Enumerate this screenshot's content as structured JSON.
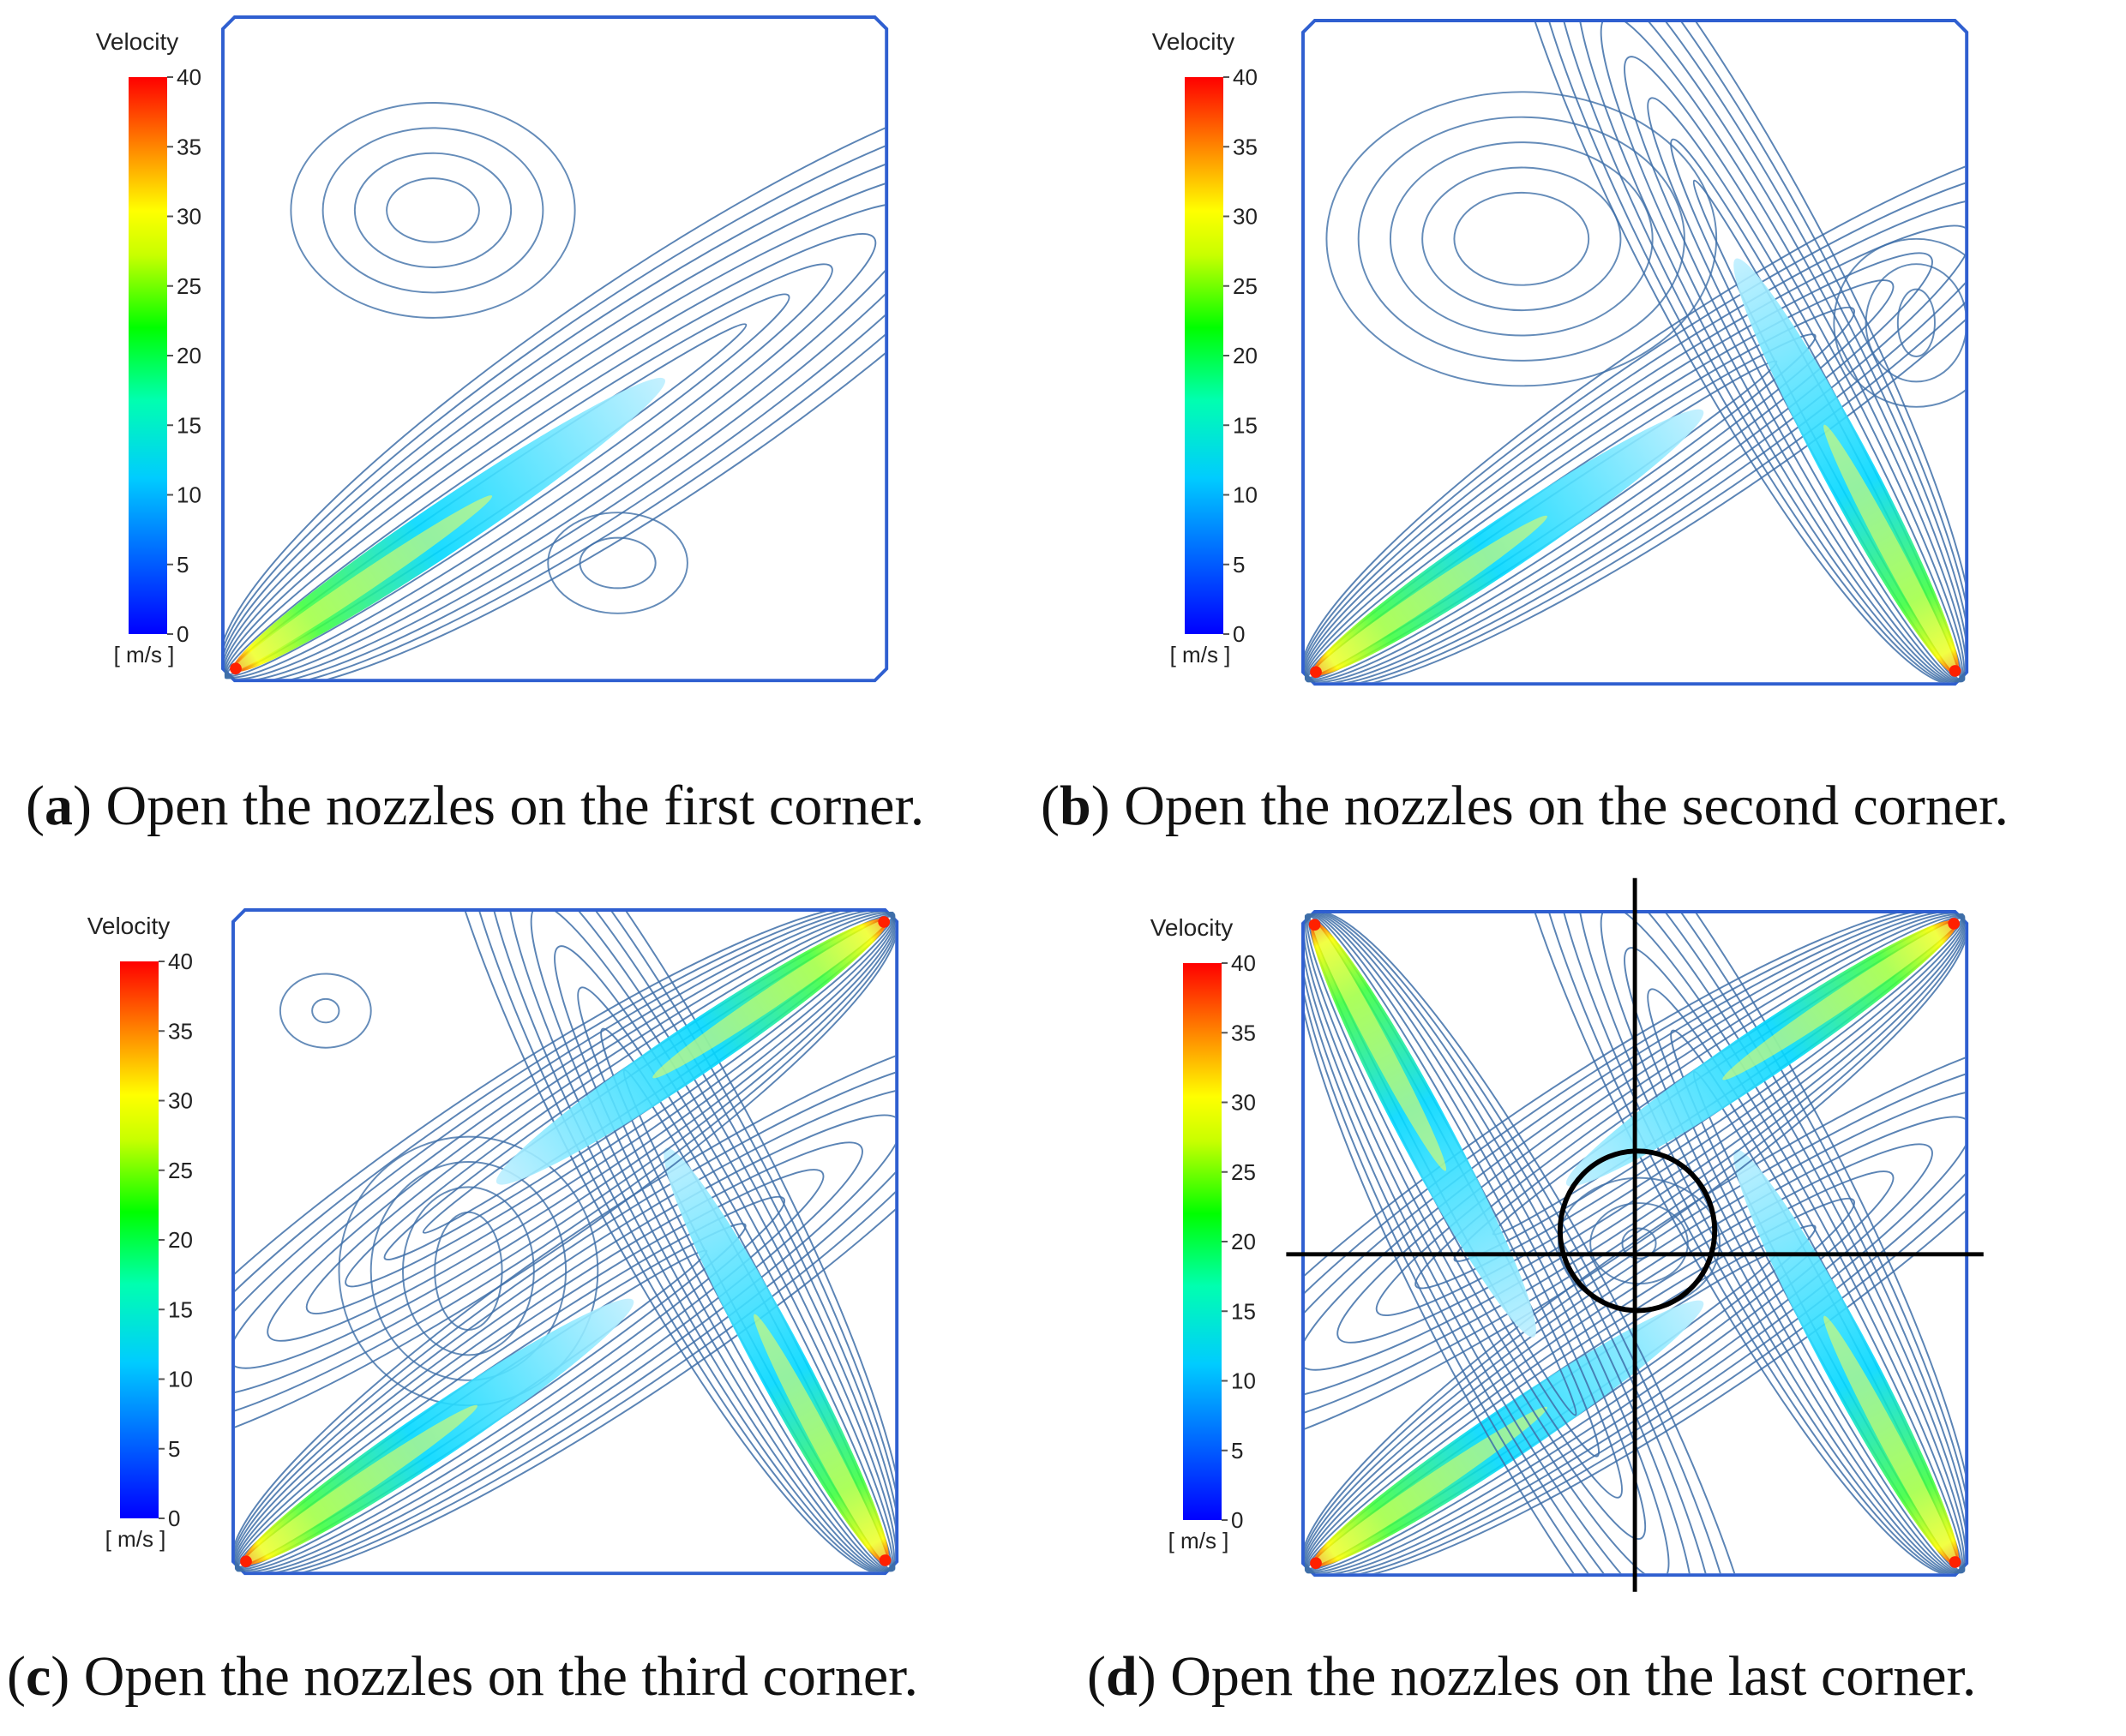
{
  "panels": [
    {
      "id": "a",
      "letter": "a",
      "caption": "Open the nozzles on the first corner.",
      "jets": [
        "bl"
      ],
      "axes": false
    },
    {
      "id": "b",
      "letter": "b",
      "caption": "Open the nozzles on the second corner.",
      "jets": [
        "bl",
        "br"
      ],
      "axes": false
    },
    {
      "id": "c",
      "letter": "c",
      "caption": "Open the nozzles on the third corner.",
      "jets": [
        "bl",
        "br",
        "tr"
      ],
      "axes": false
    },
    {
      "id": "d",
      "letter": "d",
      "caption": "Open the nozzles on the last corner.",
      "jets": [
        "bl",
        "br",
        "tr",
        "tl"
      ],
      "axes": true
    }
  ],
  "legend": {
    "title": "Velocity",
    "unit": "[ m/s ]",
    "ticks": [
      "40",
      "35",
      "30",
      "25",
      "20",
      "15",
      "10",
      "5",
      "0"
    ],
    "min": 0,
    "max": 40,
    "colors": [
      "#0000ff",
      "#0080ff",
      "#00e0ff",
      "#00ff80",
      "#40ff00",
      "#ffff00",
      "#ff8000",
      "#ff0000"
    ]
  },
  "colors": {
    "contour": "#3e6fa8",
    "border": "#2f5fd0",
    "axes": "#000000"
  }
}
